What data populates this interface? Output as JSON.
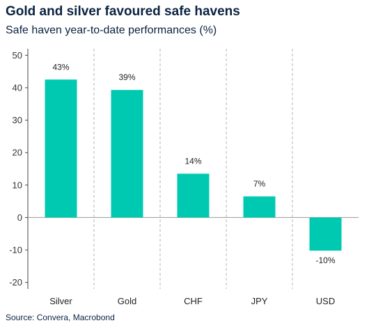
{
  "title": "Gold and silver favoured safe havens",
  "subtitle": "Safe haven year-to-date performances (%)",
  "source": "Source: Convera, Macrobond",
  "chart_data": {
    "type": "bar",
    "categories": [
      "Silver",
      "Gold",
      "CHF",
      "JPY",
      "USD"
    ],
    "values": [
      42.5,
      39.3,
      13.5,
      6.5,
      -10.2
    ],
    "data_labels": [
      "43%",
      "39%",
      "14%",
      "7%",
      "-10%"
    ],
    "ylim": [
      -22,
      52
    ],
    "yticks": [
      -20,
      -10,
      0,
      10,
      20,
      30,
      40,
      50
    ],
    "ytick_labels": [
      "-20",
      "-10",
      "0",
      "10",
      "20",
      "30",
      "40",
      "50"
    ],
    "bar_color": "#00c9b1",
    "grid": "vertical-dashed-separators",
    "legend": "none"
  }
}
